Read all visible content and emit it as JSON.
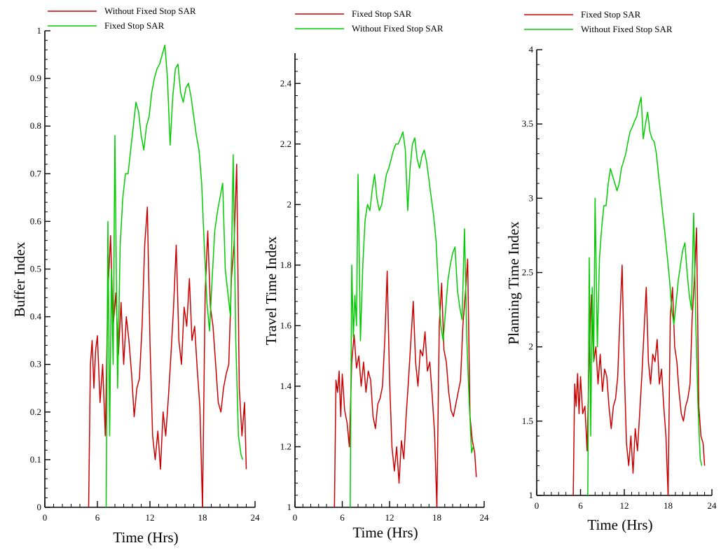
{
  "chart_data": [
    {
      "type": "line",
      "xlabel": "Time (Hrs)",
      "ylabel": "Buffer Index",
      "xlim": [
        0,
        24
      ],
      "ylim": [
        0,
        1
      ],
      "xticks": [
        0,
        6,
        12,
        18,
        24
      ],
      "yticks": [
        0,
        0.1,
        0.2,
        0.3,
        0.4,
        0.5,
        0.6,
        0.7,
        0.8,
        0.9,
        1
      ],
      "ytick_labels": [
        "0",
        "0.1",
        "0.2",
        "0.3",
        "0.4",
        "0.5",
        "0.6",
        "0.7",
        "0.8",
        "0.9",
        "1"
      ],
      "legend": [
        "Without Fixed Stop SAR",
        "Fixed Stop SAR"
      ],
      "series": [
        {
          "name": "Without Fixed Stop SAR",
          "color": "#cc0000",
          "x": [
            5,
            5.2,
            5.4,
            5.6,
            5.8,
            6,
            6.3,
            6.6,
            6.9,
            7.2,
            7.5,
            7.8,
            8.1,
            8.4,
            8.7,
            9,
            9.3,
            9.6,
            9.9,
            10.2,
            10.5,
            10.8,
            11.1,
            11.4,
            11.7,
            12,
            12.3,
            12.6,
            12.9,
            13.2,
            13.5,
            13.8,
            14.1,
            14.4,
            14.7,
            15,
            15.3,
            15.6,
            15.9,
            16.2,
            16.5,
            16.8,
            17.1,
            17.4,
            17.7,
            18,
            18.3,
            18.6,
            18.9,
            19.2,
            19.5,
            19.8,
            20.1,
            20.4,
            20.7,
            21,
            21.3,
            21.6,
            21.9,
            22.2,
            22.5,
            22.8,
            23
          ],
          "values": [
            0,
            0.3,
            0.35,
            0.25,
            0.33,
            0.36,
            0.22,
            0.3,
            0.15,
            0.45,
            0.57,
            0.38,
            0.45,
            0.32,
            0.43,
            0.3,
            0.4,
            0.35,
            0.28,
            0.19,
            0.25,
            0.27,
            0.38,
            0.55,
            0.63,
            0.35,
            0.15,
            0.1,
            0.16,
            0.08,
            0.2,
            0.15,
            0.23,
            0.32,
            0.42,
            0.55,
            0.35,
            0.3,
            0.42,
            0.38,
            0.48,
            0.35,
            0.38,
            0.29,
            0.21,
            0,
            0.45,
            0.58,
            0.42,
            0.38,
            0.3,
            0.22,
            0.2,
            0.25,
            0.28,
            0.3,
            0.48,
            0.55,
            0.72,
            0.25,
            0.15,
            0.22,
            0.08
          ]
        },
        {
          "name": "Fixed Stop SAR",
          "color": "#00cc00",
          "x": [
            7,
            7.2,
            7.4,
            7.6,
            7.8,
            8,
            8.3,
            8.6,
            8.9,
            9.2,
            9.5,
            9.8,
            10.1,
            10.4,
            10.7,
            11,
            11.3,
            11.6,
            11.9,
            12.2,
            12.5,
            12.8,
            13.1,
            13.4,
            13.7,
            14,
            14.3,
            14.6,
            14.9,
            15.2,
            15.5,
            15.8,
            16.1,
            16.4,
            16.7,
            17,
            17.3,
            17.6,
            17.9,
            18.2,
            18.5,
            18.8,
            19.1,
            19.4,
            19.7,
            20,
            20.3,
            20.6,
            20.9,
            21.2,
            21.5,
            21.8,
            22.1,
            22.4,
            22.6
          ],
          "values": [
            0,
            0.6,
            0.15,
            0.5,
            0.3,
            0.78,
            0.25,
            0.55,
            0.65,
            0.7,
            0.7,
            0.75,
            0.8,
            0.85,
            0.83,
            0.78,
            0.75,
            0.8,
            0.82,
            0.87,
            0.9,
            0.92,
            0.93,
            0.95,
            0.97,
            0.9,
            0.76,
            0.86,
            0.92,
            0.93,
            0.87,
            0.85,
            0.88,
            0.89,
            0.86,
            0.82,
            0.78,
            0.75,
            0.68,
            0.55,
            0.43,
            0.37,
            0.48,
            0.58,
            0.62,
            0.65,
            0.68,
            0.5,
            0.45,
            0.4,
            0.74,
            0.35,
            0.15,
            0.11,
            0.1
          ]
        }
      ]
    },
    {
      "type": "line",
      "xlabel": "Time (Hrs)",
      "ylabel": "Travel Time Index",
      "xlim": [
        0,
        24
      ],
      "ylim": [
        1,
        2.5
      ],
      "xticks": [
        0,
        6,
        12,
        18,
        24
      ],
      "yticks": [
        1,
        1.2,
        1.4,
        1.6,
        1.8,
        2,
        2.2,
        2.4
      ],
      "ytick_labels": [
        "1",
        "1.2",
        "1.4",
        "1.6",
        "1.8",
        "2",
        "2.2",
        "2.4"
      ],
      "legend": [
        "Fixed Stop SAR",
        "Without Fixed Stop SAR"
      ],
      "series": [
        {
          "name": "Fixed Stop SAR",
          "color": "#cc0000",
          "x": [
            5,
            5.2,
            5.4,
            5.6,
            5.8,
            6,
            6.3,
            6.6,
            6.9,
            7.2,
            7.5,
            7.8,
            8.1,
            8.4,
            8.7,
            9,
            9.3,
            9.6,
            9.9,
            10.2,
            10.5,
            10.8,
            11.1,
            11.4,
            11.7,
            12,
            12.3,
            12.6,
            12.9,
            13.2,
            13.5,
            13.8,
            14.1,
            14.4,
            14.7,
            15,
            15.3,
            15.6,
            15.9,
            16.2,
            16.5,
            16.8,
            17.1,
            17.4,
            17.7,
            18,
            18.3,
            18.6,
            18.9,
            19.2,
            19.5,
            19.8,
            20.1,
            20.4,
            20.7,
            21,
            21.3,
            21.6,
            21.9,
            22.2,
            22.5,
            22.8,
            23
          ],
          "values": [
            1,
            1.42,
            1.38,
            1.45,
            1.3,
            1.44,
            1.32,
            1.28,
            1.2,
            1.48,
            1.57,
            1.46,
            1.5,
            1.4,
            1.48,
            1.38,
            1.45,
            1.42,
            1.3,
            1.26,
            1.34,
            1.36,
            1.4,
            1.56,
            1.78,
            1.42,
            1.2,
            1.12,
            1.2,
            1.08,
            1.22,
            1.16,
            1.3,
            1.42,
            1.55,
            1.68,
            1.48,
            1.4,
            1.52,
            1.5,
            1.58,
            1.45,
            1.48,
            1.37,
            1.25,
            1,
            1.6,
            1.74,
            1.52,
            1.48,
            1.38,
            1.32,
            1.3,
            1.34,
            1.38,
            1.42,
            1.6,
            1.7,
            1.82,
            1.3,
            1.22,
            1.18,
            1.1
          ]
        },
        {
          "name": "Without Fixed Stop SAR",
          "color": "#00cc00",
          "x": [
            7,
            7.2,
            7.4,
            7.6,
            7.8,
            8,
            8.3,
            8.6,
            8.9,
            9.2,
            9.5,
            9.8,
            10.1,
            10.4,
            10.7,
            11,
            11.3,
            11.6,
            11.9,
            12.2,
            12.5,
            12.8,
            13.1,
            13.4,
            13.7,
            14,
            14.3,
            14.6,
            14.9,
            15.2,
            15.5,
            15.8,
            16.1,
            16.4,
            16.7,
            17,
            17.3,
            17.6,
            17.9,
            18.2,
            18.5,
            18.8,
            19.1,
            19.4,
            19.7,
            20,
            20.3,
            20.6,
            20.9,
            21.2,
            21.5,
            21.8,
            22.1,
            22.4,
            22.6
          ],
          "values": [
            1,
            1.8,
            1.56,
            1.7,
            1.6,
            2.1,
            1.55,
            1.8,
            1.95,
            2.0,
            1.98,
            2.05,
            2.1,
            2.02,
            1.98,
            2.0,
            2.05,
            2.1,
            2.12,
            2.15,
            2.18,
            2.2,
            2.2,
            2.22,
            2.24,
            2.18,
            1.98,
            2.12,
            2.2,
            2.22,
            2.15,
            2.12,
            2.16,
            2.18,
            2.14,
            2.08,
            2.02,
            1.96,
            1.88,
            1.72,
            1.6,
            1.55,
            1.65,
            1.75,
            1.8,
            1.84,
            1.86,
            1.72,
            1.66,
            1.62,
            1.92,
            1.55,
            1.35,
            1.18,
            1.2
          ]
        }
      ]
    },
    {
      "type": "line",
      "xlabel": "Time (Hrs)",
      "ylabel": "Planning Time Index",
      "xlim": [
        0,
        24
      ],
      "ylim": [
        1,
        4
      ],
      "xticks": [
        0,
        6,
        12,
        18,
        24
      ],
      "yticks": [
        1,
        1.5,
        2,
        2.5,
        3,
        3.5,
        4
      ],
      "ytick_labels": [
        "1",
        "1.5",
        "2",
        "2.5",
        "3",
        "3.5",
        "4"
      ],
      "legend": [
        "Fixed Stop SAR",
        "Without Fixed Stop SAR"
      ],
      "series": [
        {
          "name": "Fixed Stop SAR",
          "color": "#cc0000",
          "x": [
            5,
            5.2,
            5.4,
            5.6,
            5.8,
            6,
            6.3,
            6.6,
            6.9,
            7.2,
            7.5,
            7.8,
            8.1,
            8.4,
            8.7,
            9,
            9.3,
            9.6,
            9.9,
            10.2,
            10.5,
            10.8,
            11.1,
            11.4,
            11.7,
            12,
            12.3,
            12.6,
            12.9,
            13.2,
            13.5,
            13.8,
            14.1,
            14.4,
            14.7,
            15,
            15.3,
            15.6,
            15.9,
            16.2,
            16.5,
            16.8,
            17.1,
            17.4,
            17.7,
            18,
            18.3,
            18.6,
            18.9,
            19.2,
            19.5,
            19.8,
            20.1,
            20.4,
            20.7,
            21,
            21.3,
            21.6,
            21.9,
            22.2,
            22.5,
            22.8,
            23
          ],
          "values": [
            1,
            1.75,
            1.6,
            1.82,
            1.55,
            1.8,
            1.55,
            1.6,
            1.3,
            1.95,
            2.35,
            1.9,
            2.0,
            1.75,
            1.95,
            1.7,
            1.85,
            1.8,
            1.6,
            1.45,
            1.6,
            1.65,
            1.8,
            2.2,
            2.55,
            1.85,
            1.35,
            1.2,
            1.4,
            1.15,
            1.45,
            1.3,
            1.55,
            1.8,
            2.1,
            2.4,
            1.9,
            1.75,
            1.95,
            1.9,
            2.05,
            1.75,
            1.85,
            1.6,
            1.4,
            1,
            2.2,
            2.4,
            2.0,
            1.9,
            1.7,
            1.55,
            1.5,
            1.6,
            1.65,
            1.75,
            2.2,
            2.45,
            2.8,
            1.6,
            1.4,
            1.35,
            1.2
          ]
        },
        {
          "name": "Without Fixed Stop SAR",
          "color": "#00cc00",
          "x": [
            7,
            7.2,
            7.4,
            7.6,
            7.8,
            8,
            8.3,
            8.6,
            8.9,
            9.2,
            9.5,
            9.8,
            10.1,
            10.4,
            10.7,
            11,
            11.3,
            11.6,
            11.9,
            12.2,
            12.5,
            12.8,
            13.1,
            13.4,
            13.7,
            14,
            14.3,
            14.6,
            14.9,
            15.2,
            15.5,
            15.8,
            16.1,
            16.4,
            16.7,
            17,
            17.3,
            17.6,
            17.9,
            18.2,
            18.5,
            18.8,
            19.1,
            19.4,
            19.7,
            20,
            20.3,
            20.6,
            20.9,
            21.2,
            21.5,
            21.8,
            22.1,
            22.4,
            22.6
          ],
          "values": [
            1,
            2.6,
            1.4,
            2.4,
            1.9,
            3.0,
            2.0,
            2.6,
            2.8,
            2.95,
            2.95,
            3.1,
            3.2,
            3.15,
            3.1,
            3.05,
            3.1,
            3.2,
            3.25,
            3.3,
            3.38,
            3.45,
            3.48,
            3.52,
            3.55,
            3.62,
            3.68,
            3.4,
            3.5,
            3.58,
            3.45,
            3.4,
            3.38,
            3.3,
            3.15,
            3.02,
            2.88,
            2.75,
            2.6,
            2.45,
            2.25,
            2.15,
            2.3,
            2.45,
            2.55,
            2.65,
            2.7,
            2.5,
            2.35,
            2.25,
            2.9,
            2.15,
            1.6,
            1.25,
            1.2
          ]
        }
      ]
    }
  ]
}
